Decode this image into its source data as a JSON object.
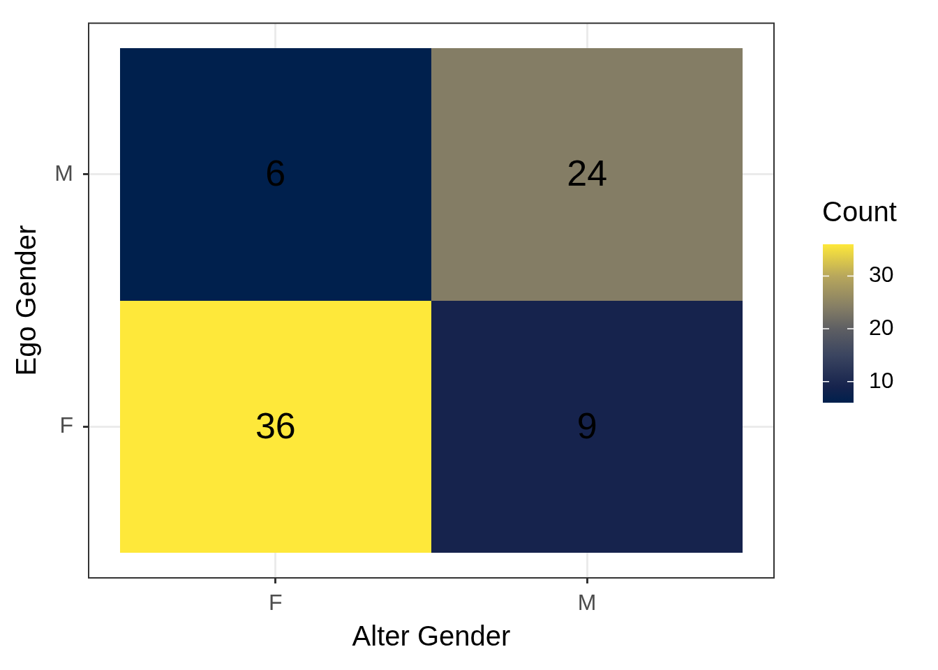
{
  "chart_data": {
    "type": "heatmap",
    "xlabel": "Alter Gender",
    "ylabel": "Ego Gender",
    "clabel": "Count",
    "categories": [
      "F",
      "M"
    ],
    "y_categories": [
      "M",
      "F"
    ],
    "cells": [
      [
        6,
        24
      ],
      [
        36,
        9
      ]
    ],
    "clim": [
      6,
      36
    ],
    "cticks": [
      10,
      20,
      30
    ],
    "data_labels": true,
    "grid": true
  }
}
